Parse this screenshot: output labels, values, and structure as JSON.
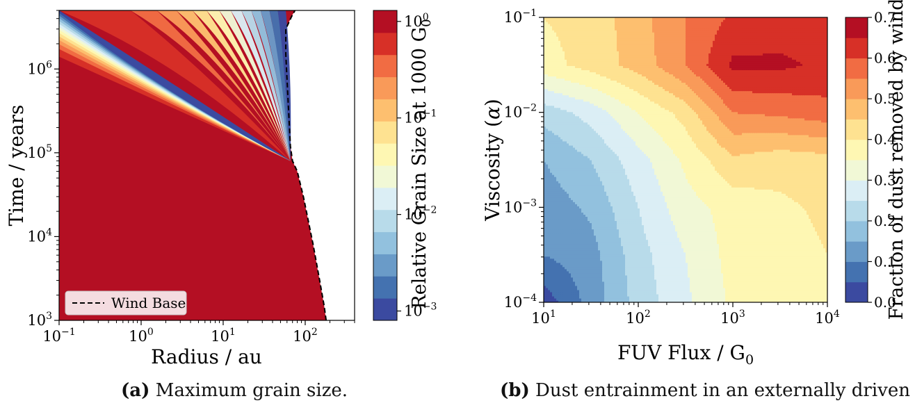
{
  "colors": {
    "scale": [
      "#3b4aa0",
      "#4472b0",
      "#6a9bc8",
      "#92c1de",
      "#b8dbea",
      "#dbeef5",
      "#f1f8d6",
      "#fef7b3",
      "#fee291",
      "#fdbf6f",
      "#f99a59",
      "#f16c43",
      "#d73027",
      "#b40f23"
    ],
    "left_bg": "#b40f23"
  },
  "chart_data": [
    {
      "type": "heatmap",
      "panel": "a",
      "xlabel": "Radius / au",
      "ylabel": "Time / years",
      "x_scale": "log",
      "y_scale": "log",
      "xlim": [
        0.1,
        400
      ],
      "ylim": [
        1000,
        5000000
      ],
      "x_ticks": [
        {
          "v": 0.1,
          "b": "10",
          "e": "−1"
        },
        {
          "v": 1,
          "b": "10",
          "e": "0"
        },
        {
          "v": 10,
          "b": "10",
          "e": "1"
        },
        {
          "v": 100,
          "b": "10",
          "e": "2"
        }
      ],
      "y_ticks": [
        {
          "v": 1000,
          "b": "10",
          "e": "3"
        },
        {
          "v": 10000,
          "b": "10",
          "e": "4"
        },
        {
          "v": 100000,
          "b": "10",
          "e": "5"
        },
        {
          "v": 1000000,
          "b": "10",
          "e": "6"
        }
      ],
      "wind_base": [
        [
          180,
          1000
        ],
        [
          170,
          1500
        ],
        [
          150,
          3000
        ],
        [
          125,
          8000
        ],
        [
          95,
          30000
        ],
        [
          80,
          60000
        ],
        [
          70,
          80000
        ],
        [
          66,
          120000
        ],
        [
          62,
          400000
        ],
        [
          58,
          1500000
        ],
        [
          58,
          3000000
        ],
        [
          68,
          4200000
        ],
        [
          75,
          5000000
        ]
      ],
      "legend": {
        "label": "Wind Base",
        "placement": "lower-left"
      },
      "colorbar": {
        "label_main": "Relative Grain Size at 1000 G",
        "label_sub": "0",
        "scale": "log",
        "range": [
          0.0008,
          1.3
        ],
        "ticks": [
          {
            "v": 1,
            "b": "10",
            "e": "0"
          },
          {
            "v": 0.1,
            "b": "10",
            "e": "−1"
          },
          {
            "v": 0.01,
            "b": "10",
            "e": "−2"
          },
          {
            "v": 0.001,
            "b": "10",
            "e": "−3"
          }
        ]
      }
    },
    {
      "type": "heatmap",
      "panel": "b",
      "xlabel_main": "FUV Flux / G",
      "xlabel_sub": "0",
      "ylabel_main": "Viscosity (",
      "ylabel_sym": "α",
      "ylabel_end": ")",
      "x_scale": "log",
      "y_scale": "log",
      "xlim": [
        10,
        10000
      ],
      "ylim": [
        0.0001,
        0.1
      ],
      "x_ticks": [
        {
          "v": 10,
          "b": "10",
          "e": "1"
        },
        {
          "v": 100,
          "b": "10",
          "e": "2"
        },
        {
          "v": 1000,
          "b": "10",
          "e": "3"
        },
        {
          "v": 10000,
          "b": "10",
          "e": "4"
        }
      ],
      "y_ticks": [
        {
          "v": 0.0001,
          "b": "10",
          "e": "−4"
        },
        {
          "v": 0.001,
          "b": "10",
          "e": "−3"
        },
        {
          "v": 0.01,
          "b": "10",
          "e": "−2"
        },
        {
          "v": 0.1,
          "b": "10",
          "e": "−1"
        }
      ],
      "flux": [
        10,
        30,
        100,
        300,
        1000,
        3000,
        10000
      ],
      "alpha": [
        0.0001,
        0.0003,
        0.001,
        0.003,
        0.01,
        0.03,
        0.1
      ],
      "fraction": [
        [
          0.02,
          0.12,
          0.22,
          0.29,
          0.36,
          0.37,
          0.39
        ],
        [
          0.1,
          0.13,
          0.23,
          0.3,
          0.37,
          0.38,
          0.4
        ],
        [
          0.12,
          0.16,
          0.25,
          0.33,
          0.37,
          0.39,
          0.41
        ],
        [
          0.15,
          0.2,
          0.28,
          0.36,
          0.44,
          0.42,
          0.43
        ],
        [
          0.22,
          0.27,
          0.35,
          0.42,
          0.55,
          0.56,
          0.58
        ],
        [
          0.38,
          0.42,
          0.47,
          0.55,
          0.66,
          0.66,
          0.64
        ],
        [
          0.4,
          0.42,
          0.48,
          0.55,
          0.61,
          0.62,
          0.62
        ]
      ],
      "colorbar": {
        "label": "Fraction of dust removed by wind",
        "range": [
          0,
          0.7
        ],
        "ticks": [
          "0.0",
          "0.1",
          "0.2",
          "0.3",
          "0.4",
          "0.5",
          "0.6",
          "0.7"
        ]
      }
    }
  ],
  "captions": [
    {
      "label": "(a)",
      "text": " Maximum grain size."
    },
    {
      "label": "(b)",
      "text": " Dust entrainment in an externally driven wind"
    }
  ]
}
